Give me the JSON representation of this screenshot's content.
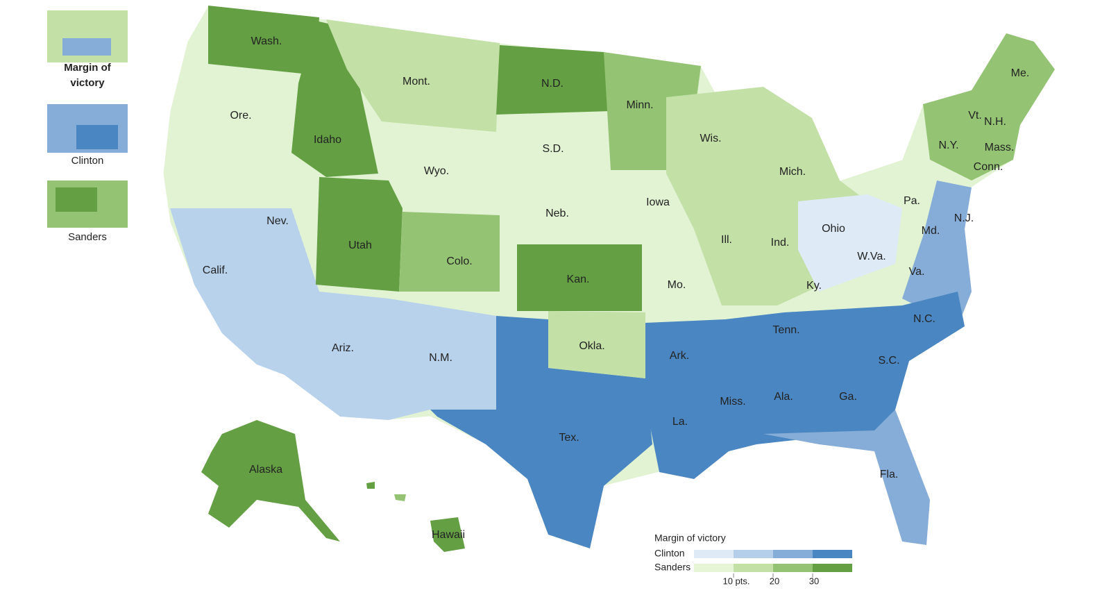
{
  "sidebar": {
    "thumbnails": [
      {
        "label": "Margin of victory"
      },
      {
        "label": "Clinton"
      },
      {
        "label": "Sanders"
      }
    ]
  },
  "map": {
    "state_labels": [
      "Wash.",
      "Ore.",
      "Calif.",
      "Nev.",
      "Idaho",
      "Mont.",
      "Wyo.",
      "Utah",
      "Colo.",
      "Ariz.",
      "N.M.",
      "N.D.",
      "S.D.",
      "Neb.",
      "Kan.",
      "Okla.",
      "Tex.",
      "Minn.",
      "Iowa",
      "Mo.",
      "Ark.",
      "La.",
      "Wis.",
      "Ill.",
      "Mich.",
      "Ind.",
      "Ohio",
      "Ky.",
      "Tenn.",
      "Miss.",
      "Ala.",
      "Ga.",
      "Fla.",
      "S.C.",
      "N.C.",
      "Va.",
      "W.Va.",
      "Pa.",
      "N.Y.",
      "Md.",
      "N.J.",
      "Vt.",
      "N.H.",
      "Me.",
      "Mass.",
      "Conn.",
      "Alaska",
      "Hawaii"
    ]
  },
  "legend": {
    "title": "Margin of victory",
    "rows": [
      {
        "name": "Clinton",
        "colors": [
          "#deebf7",
          "#b5cfea",
          "#86add8",
          "#4a86c1"
        ]
      },
      {
        "name": "Sanders",
        "colors": [
          "#e6f5d6",
          "#c3e0a6",
          "#94c473",
          "#64a043"
        ]
      }
    ],
    "ticks": [
      "10 pts.",
      "20",
      "30"
    ]
  }
}
